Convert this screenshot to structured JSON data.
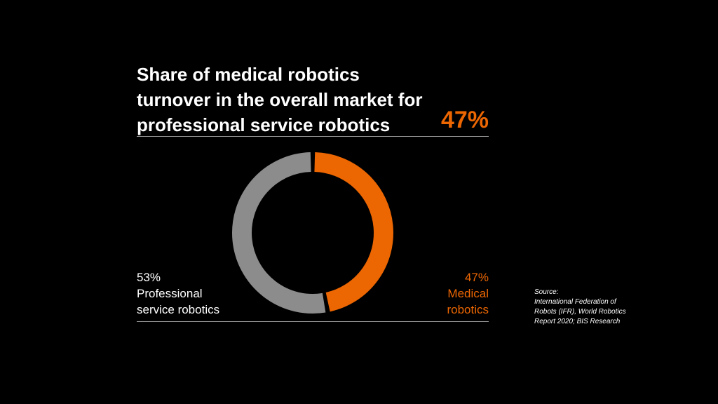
{
  "chart_data": {
    "type": "donut",
    "title": "Share of medical robotics turnover in the overall market for professional service robotics",
    "highlight": "47%",
    "categories": [
      "Medical robotics",
      "Professional service robotics"
    ],
    "values": [
      47,
      53
    ],
    "value_labels": [
      "47%",
      "53%"
    ],
    "colors": [
      "#ec6602",
      "#8c8c8c"
    ],
    "source_heading": "Source:",
    "source": "International Federation of Robots (IFR), World Robotics Report 2020; BIS Research"
  }
}
